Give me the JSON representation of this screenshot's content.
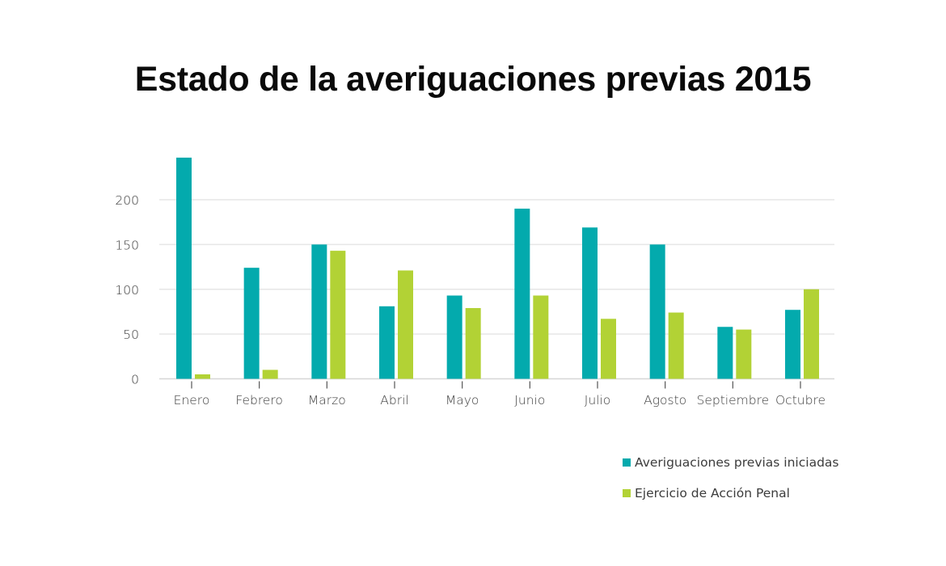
{
  "chart_data": {
    "type": "bar",
    "title": "Estado de la averiguaciones previas 2015",
    "xlabel": "",
    "ylabel": "",
    "categories": [
      "Enero",
      "Febrero",
      "Marzo",
      "Abril",
      "Mayo",
      "Junio",
      "Julio",
      "Agosto",
      "Septiembre",
      "Octubre"
    ],
    "series": [
      {
        "name": "Averiguaciones previas iniciadas",
        "color": "#03aaad",
        "values": [
          247,
          124,
          150,
          81,
          93,
          190,
          169,
          150,
          58,
          77
        ]
      },
      {
        "name": "Ejercicio de Acción Penal",
        "color": "#b2d235",
        "values": [
          5,
          10,
          143,
          121,
          79,
          93,
          67,
          74,
          55,
          100
        ]
      }
    ],
    "yticks": [
      0,
      50,
      100,
      150,
      200
    ],
    "ytick_labels": [
      "0",
      "50",
      "100",
      "150",
      "200"
    ],
    "ylim": [
      0,
      250
    ],
    "grid": true,
    "legend_position": "bottom-right"
  }
}
